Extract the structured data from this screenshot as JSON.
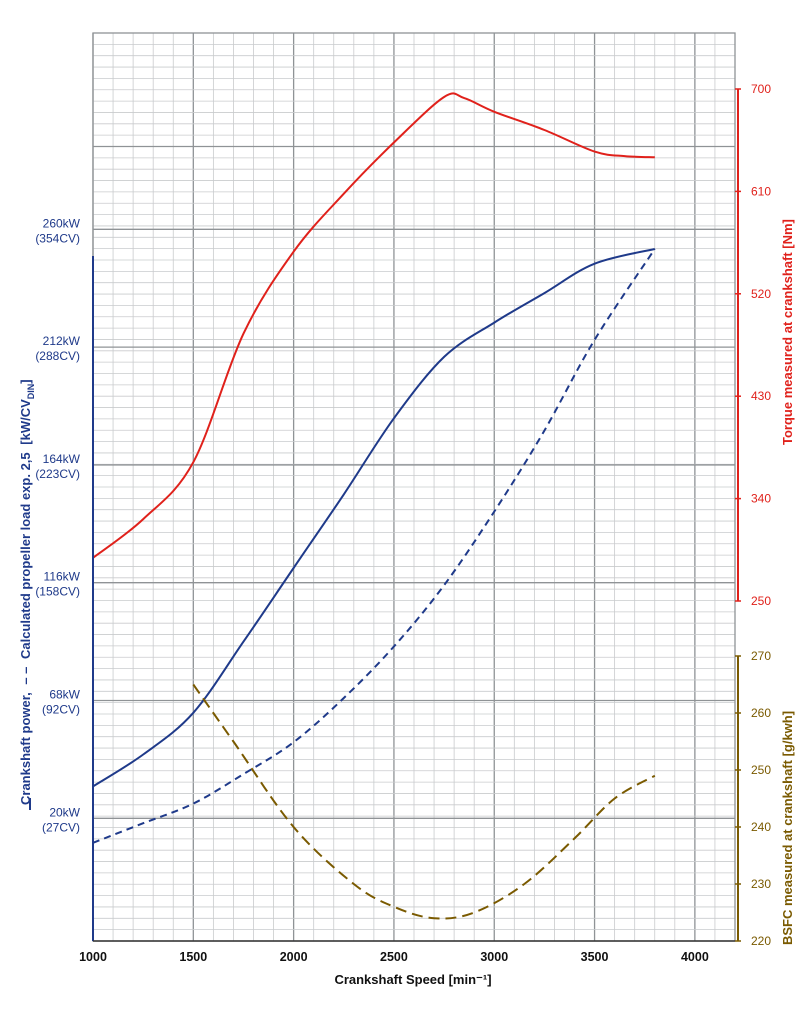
{
  "chart_data": {
    "type": "line",
    "xlabel": "Crankshaft Speed [min⁻¹]",
    "xlim": [
      1000,
      4200
    ],
    "x_ticks": [
      1000,
      1500,
      2000,
      2500,
      3000,
      3500,
      4000
    ],
    "power_axis": {
      "label_parts": [
        "Crankshaft power,",
        "Calculated propeller load exp. 2,5",
        "[kW/CV",
        "DIN",
        "]"
      ],
      "ylim": [
        -30,
        340
      ],
      "ticks": [
        {
          "value": 20,
          "kw": "20kW",
          "cv": "(27CV)"
        },
        {
          "value": 68,
          "kw": "68kW",
          "cv": "(92CV)"
        },
        {
          "value": 116,
          "kw": "116kW",
          "cv": "(158CV)"
        },
        {
          "value": 164,
          "kw": "164kW",
          "cv": "(223CV)"
        },
        {
          "value": 212,
          "kw": "212kW",
          "cv": "(288CV)"
        },
        {
          "value": 260,
          "kw": "260kW",
          "cv": "(354CV)"
        }
      ]
    },
    "torque_axis": {
      "label": "Torque measured at crankshaft [Nm]",
      "ylim": [
        250,
        700
      ],
      "ticks": [
        250,
        340,
        430,
        520,
        610,
        700
      ]
    },
    "bsfc_axis": {
      "label": "BSFC measured at crankshaft [g/kwh]",
      "ylim": [
        220,
        270
      ],
      "ticks": [
        220,
        230,
        240,
        250,
        260,
        270
      ]
    },
    "series": [
      {
        "name": "Crankshaft power",
        "axis": "power",
        "style": "solid",
        "color": "#1f3a8a",
        "x": [
          1000,
          1250,
          1500,
          1750,
          2000,
          2250,
          2500,
          2750,
          3000,
          3250,
          3500,
          3800
        ],
        "y": [
          33,
          46,
          63,
          92,
          122,
          152,
          183,
          208,
          222,
          234,
          246,
          252
        ]
      },
      {
        "name": "Calculated propeller load exp. 2,5",
        "axis": "power",
        "style": "dashed",
        "color": "#1f3a8a",
        "x": [
          1000,
          1250,
          1500,
          1750,
          2000,
          2250,
          2500,
          2750,
          3000,
          3250,
          3500,
          3800
        ],
        "y": [
          10,
          18,
          26,
          38,
          51,
          69,
          90,
          115,
          145,
          178,
          215,
          252
        ]
      },
      {
        "name": "Torque measured at crankshaft",
        "axis": "torque",
        "style": "solid",
        "color": "#e0211b",
        "x": [
          1000,
          1250,
          1500,
          1750,
          2000,
          2250,
          2500,
          2750,
          2850,
          3000,
          3250,
          3500,
          3650,
          3800
        ],
        "y": [
          288,
          322,
          372,
          485,
          557,
          608,
          653,
          693,
          692,
          680,
          664,
          645,
          641,
          640
        ]
      },
      {
        "name": "BSFC measured at crankshaft",
        "axis": "bsfc",
        "style": "dashed",
        "color": "#7a5a00",
        "x": [
          1500,
          1700,
          2000,
          2300,
          2500,
          2700,
          2900,
          3150,
          3400,
          3600,
          3800
        ],
        "y": [
          265,
          255,
          240,
          230,
          226,
          224,
          225,
          230,
          238,
          245,
          249
        ]
      }
    ]
  }
}
